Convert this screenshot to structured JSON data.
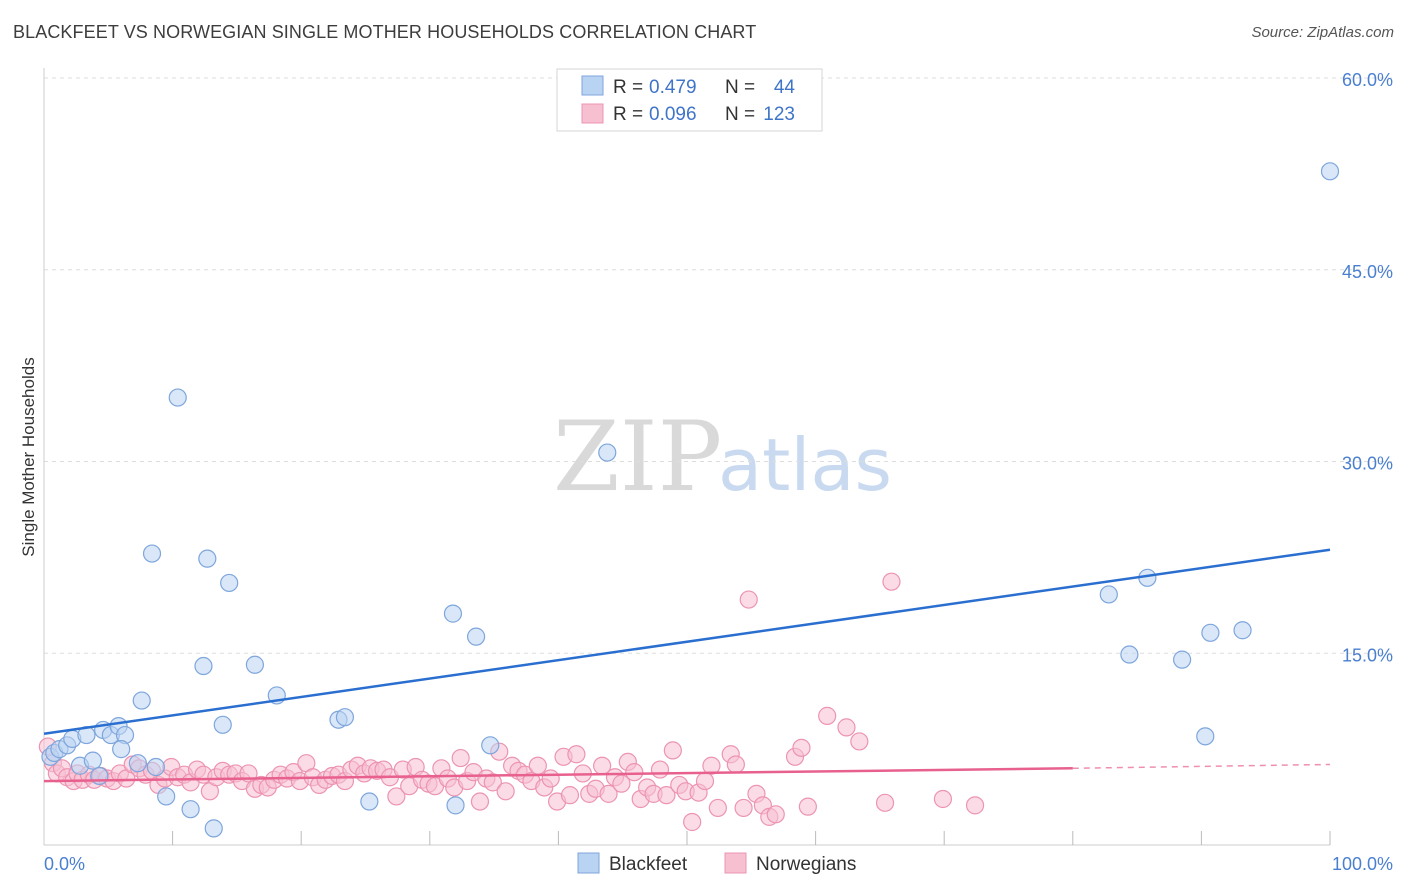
{
  "title": "BLACKFEET VS NORWEGIAN SINGLE MOTHER HOUSEHOLDS CORRELATION CHART",
  "source": "Source: ZipAtlas.com",
  "watermark": {
    "zip": "ZIP",
    "atlas": "atlas"
  },
  "legend": {
    "r_label": "R =",
    "n_label": "N =",
    "entries": [
      {
        "name": "Blackfeet",
        "r": "0.479",
        "n": "44"
      },
      {
        "name": "Norwegians",
        "r": "0.096",
        "n": "123"
      }
    ]
  },
  "colors": {
    "blackfeet_fill": "#b9d3f2",
    "blackfeet_stroke": "#7ea6dc",
    "blackfeet_line": "#2a6fd0",
    "norwegians_fill": "#f7c0d1",
    "norwegians_stroke": "#ec94b2",
    "norwegians_line": "#e8608e",
    "grid": "#dddddd",
    "tick_text": "#4a7fd0"
  },
  "chart_data": {
    "type": "scatter",
    "title": "BLACKFEET VS NORWEGIAN SINGLE MOTHER HOUSEHOLDS CORRELATION CHART",
    "xlabel": "",
    "ylabel": "Single Mother Households",
    "xlim": [
      0,
      100
    ],
    "ylim": [
      0,
      62
    ],
    "x_tick_labels": [
      "0.0%",
      "100.0%"
    ],
    "y_ticks": [
      15,
      30,
      45,
      60
    ],
    "y_tick_labels": [
      "15.0%",
      "30.0%",
      "45.0%",
      "60.0%"
    ],
    "grid": true,
    "legend_position": "top-center",
    "series": [
      {
        "name": "Blackfeet",
        "r": 0.479,
        "n": 44,
        "trend": {
          "x": [
            0,
            100
          ],
          "y": [
            8.7,
            23.1
          ]
        },
        "points": [
          [
            0.5,
            6.9
          ],
          [
            0.8,
            7.2
          ],
          [
            1.2,
            7.5
          ],
          [
            1.8,
            7.8
          ],
          [
            2.2,
            8.3
          ],
          [
            3.3,
            8.6
          ],
          [
            2.8,
            6.2
          ],
          [
            3.8,
            6.6
          ],
          [
            4.3,
            5.4
          ],
          [
            4.6,
            9.0
          ],
          [
            5.2,
            8.6
          ],
          [
            5.8,
            9.3
          ],
          [
            6.3,
            8.6
          ],
          [
            6.0,
            7.5
          ],
          [
            7.3,
            6.4
          ],
          [
            7.6,
            11.3
          ],
          [
            8.4,
            22.8
          ],
          [
            8.7,
            6.1
          ],
          [
            9.5,
            3.8
          ],
          [
            10.4,
            35.0
          ],
          [
            11.4,
            2.8
          ],
          [
            12.4,
            14.0
          ],
          [
            12.7,
            22.4
          ],
          [
            13.2,
            1.3
          ],
          [
            13.9,
            9.4
          ],
          [
            14.4,
            20.5
          ],
          [
            16.4,
            14.1
          ],
          [
            18.1,
            11.7
          ],
          [
            22.9,
            9.8
          ],
          [
            23.4,
            10.0
          ],
          [
            25.3,
            3.4
          ],
          [
            31.8,
            18.1
          ],
          [
            32.0,
            3.1
          ],
          [
            33.6,
            16.3
          ],
          [
            34.7,
            7.8
          ],
          [
            43.8,
            30.7
          ],
          [
            82.8,
            19.6
          ],
          [
            84.4,
            14.9
          ],
          [
            85.8,
            20.9
          ],
          [
            88.5,
            14.5
          ],
          [
            90.3,
            8.5
          ],
          [
            90.7,
            16.6
          ],
          [
            93.2,
            16.8
          ],
          [
            100.0,
            52.7
          ]
        ]
      },
      {
        "name": "Norwegians",
        "r": 0.096,
        "n": 123,
        "trend": {
          "x": [
            0,
            80
          ],
          "y": [
            5.0,
            6.0
          ]
        },
        "trend_extension": {
          "x": [
            80,
            100
          ],
          "y": [
            6.0,
            6.3
          ]
        },
        "points": [
          [
            0.3,
            7.7
          ],
          [
            0.7,
            6.4
          ],
          [
            1.0,
            5.6
          ],
          [
            1.4,
            6.0
          ],
          [
            1.8,
            5.3
          ],
          [
            2.3,
            5.0
          ],
          [
            2.6,
            5.6
          ],
          [
            3.0,
            5.1
          ],
          [
            3.5,
            5.5
          ],
          [
            3.9,
            5.1
          ],
          [
            4.4,
            5.4
          ],
          [
            4.9,
            5.2
          ],
          [
            5.4,
            5.0
          ],
          [
            5.9,
            5.6
          ],
          [
            6.4,
            5.2
          ],
          [
            6.9,
            6.3
          ],
          [
            7.4,
            6.0
          ],
          [
            7.9,
            5.5
          ],
          [
            8.4,
            5.8
          ],
          [
            8.9,
            4.7
          ],
          [
            9.4,
            5.2
          ],
          [
            9.9,
            6.1
          ],
          [
            10.4,
            5.3
          ],
          [
            10.9,
            5.5
          ],
          [
            11.4,
            4.9
          ],
          [
            11.9,
            5.9
          ],
          [
            12.4,
            5.5
          ],
          [
            12.9,
            4.2
          ],
          [
            13.4,
            5.3
          ],
          [
            13.9,
            5.8
          ],
          [
            14.4,
            5.5
          ],
          [
            14.9,
            5.6
          ],
          [
            15.4,
            5.0
          ],
          [
            15.9,
            5.6
          ],
          [
            16.4,
            4.4
          ],
          [
            16.9,
            4.7
          ],
          [
            17.4,
            4.5
          ],
          [
            17.9,
            5.1
          ],
          [
            18.4,
            5.5
          ],
          [
            18.9,
            5.2
          ],
          [
            19.4,
            5.7
          ],
          [
            19.9,
            5.0
          ],
          [
            20.4,
            6.4
          ],
          [
            20.9,
            5.3
          ],
          [
            21.4,
            4.7
          ],
          [
            21.9,
            5.1
          ],
          [
            22.4,
            5.4
          ],
          [
            22.9,
            5.5
          ],
          [
            23.4,
            5.0
          ],
          [
            23.9,
            5.9
          ],
          [
            24.4,
            6.2
          ],
          [
            24.9,
            5.6
          ],
          [
            25.4,
            6.0
          ],
          [
            25.9,
            5.8
          ],
          [
            26.4,
            5.9
          ],
          [
            26.9,
            5.3
          ],
          [
            27.4,
            3.8
          ],
          [
            27.9,
            5.9
          ],
          [
            28.4,
            4.6
          ],
          [
            28.9,
            6.1
          ],
          [
            29.4,
            5.1
          ],
          [
            29.9,
            4.8
          ],
          [
            30.4,
            4.6
          ],
          [
            30.9,
            6.0
          ],
          [
            31.4,
            5.2
          ],
          [
            31.9,
            4.5
          ],
          [
            32.4,
            6.8
          ],
          [
            32.9,
            5.0
          ],
          [
            33.4,
            5.7
          ],
          [
            33.9,
            3.4
          ],
          [
            34.4,
            5.2
          ],
          [
            34.9,
            4.9
          ],
          [
            35.4,
            7.3
          ],
          [
            35.9,
            4.2
          ],
          [
            36.4,
            6.2
          ],
          [
            36.9,
            5.8
          ],
          [
            37.4,
            5.5
          ],
          [
            37.9,
            5.0
          ],
          [
            38.4,
            6.2
          ],
          [
            38.9,
            4.5
          ],
          [
            39.4,
            5.2
          ],
          [
            39.9,
            3.4
          ],
          [
            40.4,
            6.9
          ],
          [
            40.9,
            3.9
          ],
          [
            41.4,
            7.1
          ],
          [
            41.9,
            5.6
          ],
          [
            42.4,
            4.0
          ],
          [
            42.9,
            4.4
          ],
          [
            43.4,
            6.2
          ],
          [
            43.9,
            4.0
          ],
          [
            44.4,
            5.3
          ],
          [
            44.9,
            4.8
          ],
          [
            45.4,
            6.5
          ],
          [
            45.9,
            5.7
          ],
          [
            46.4,
            3.6
          ],
          [
            46.9,
            4.5
          ],
          [
            47.4,
            4.0
          ],
          [
            47.9,
            5.9
          ],
          [
            48.4,
            3.9
          ],
          [
            48.9,
            7.4
          ],
          [
            49.4,
            4.7
          ],
          [
            49.9,
            4.2
          ],
          [
            50.4,
            1.8
          ],
          [
            50.9,
            4.1
          ],
          [
            51.4,
            5.0
          ],
          [
            51.9,
            6.2
          ],
          [
            52.4,
            2.9
          ],
          [
            53.4,
            7.1
          ],
          [
            53.8,
            6.3
          ],
          [
            54.4,
            2.9
          ],
          [
            54.8,
            19.2
          ],
          [
            55.4,
            4.0
          ],
          [
            55.9,
            3.1
          ],
          [
            56.4,
            2.2
          ],
          [
            56.9,
            2.4
          ],
          [
            58.4,
            6.9
          ],
          [
            58.9,
            7.6
          ],
          [
            59.4,
            3.0
          ],
          [
            60.9,
            10.1
          ],
          [
            62.4,
            9.2
          ],
          [
            63.4,
            8.1
          ],
          [
            65.4,
            3.3
          ],
          [
            65.9,
            20.6
          ],
          [
            69.9,
            3.6
          ],
          [
            72.4,
            3.1
          ]
        ]
      }
    ]
  }
}
